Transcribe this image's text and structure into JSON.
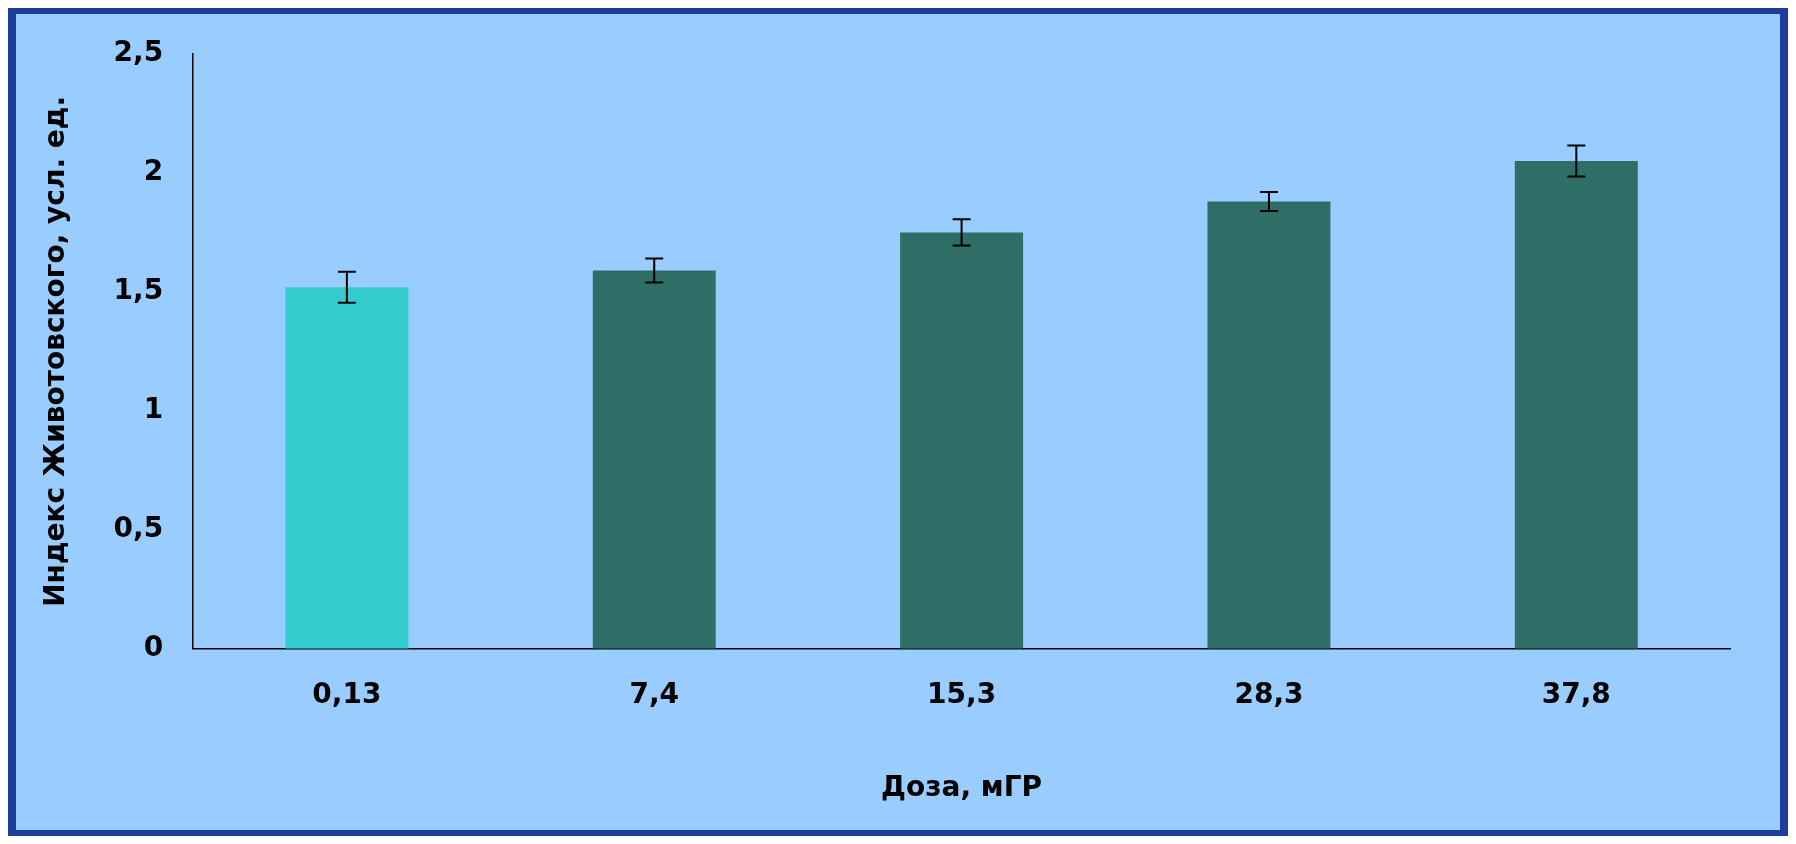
{
  "chart_data": {
    "type": "bar",
    "xlabel": "Доза, мГР",
    "ylabel": "Индекс Животовского, усл. ед.",
    "categories": [
      "0,13",
      "7,4",
      "15,3",
      "28,3",
      "37,8"
    ],
    "values": [
      1.52,
      1.59,
      1.75,
      1.88,
      2.05
    ],
    "colors": [
      "#33cccc",
      "#2e6e66",
      "#2e6e66",
      "#2e6e66",
      "#2e6e66"
    ],
    "errors": [
      0.065,
      0.05,
      0.055,
      0.04,
      0.065
    ],
    "ylim": [
      0,
      2.5
    ],
    "yticks": [
      0,
      {
        "value": 0.5,
        "label": "0,5"
      },
      1,
      {
        "value": 1.5,
        "label": "1,5"
      },
      2,
      {
        "value": 2.5,
        "label": "2,5"
      }
    ],
    "grid": false,
    "legend": false
  }
}
